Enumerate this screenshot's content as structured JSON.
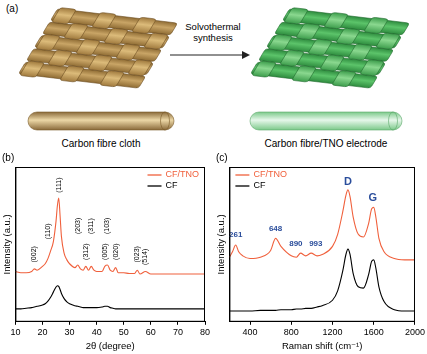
{
  "diagram": {
    "label": "(a)",
    "arrow_label": "Solvothermal synthesis",
    "left_label": "Carbon fibre cloth",
    "right_label": "Carbon fibre/TNO electrode"
  },
  "chart_data": [
    {
      "type": "line",
      "title": "(b)",
      "x_label": "2θ (degree)",
      "y_label": "Intensity (a.u.)",
      "x": [
        10,
        12,
        14,
        16,
        17,
        18,
        20,
        21,
        22,
        23,
        24,
        25,
        25.5,
        26,
        26.5,
        27,
        28,
        29,
        30,
        32,
        33,
        34,
        35,
        36,
        37,
        38,
        39,
        40,
        42,
        43,
        44,
        45,
        46,
        47,
        48,
        50,
        52,
        54,
        55,
        56,
        58,
        60,
        62,
        65,
        70,
        75,
        80
      ],
      "series": [
        {
          "name": "CF/TNO",
          "color": "#f0603c",
          "values": [
            3.9,
            3.8,
            3.8,
            3.9,
            4.1,
            4.0,
            4.3,
            4.5,
            4.9,
            5.5,
            6.2,
            7.8,
            9.0,
            9.6,
            8.2,
            6.6,
            5.3,
            4.8,
            4.5,
            4.2,
            4.4,
            4.1,
            4.0,
            4.3,
            4.0,
            4.3,
            4.0,
            3.9,
            3.9,
            4.3,
            4.4,
            4.0,
            3.9,
            4.2,
            3.8,
            3.8,
            3.75,
            3.75,
            4.0,
            3.7,
            3.9,
            3.7,
            3.7,
            3.7,
            3.7,
            3.7,
            3.7
          ]
        },
        {
          "name": "CF",
          "color": "#000000",
          "values": [
            1.0,
            1.0,
            1.05,
            1.1,
            1.15,
            1.2,
            1.3,
            1.4,
            1.6,
            1.9,
            2.3,
            2.7,
            2.8,
            2.75,
            2.5,
            2.2,
            1.8,
            1.55,
            1.4,
            1.25,
            1.2,
            1.15,
            1.1,
            1.1,
            1.1,
            1.1,
            1.1,
            1.1,
            1.15,
            1.2,
            1.2,
            1.1,
            1.05,
            1.0,
            1.0,
            1.0,
            1.0,
            1.0,
            1.0,
            1.0,
            1.0,
            1.0,
            1.0,
            1.0,
            1.0,
            1.0,
            1.0
          ]
        }
      ],
      "xlim": [
        10,
        80
      ],
      "xticks": [
        10,
        20,
        30,
        40,
        50,
        60,
        70,
        80
      ],
      "ylim": [
        0,
        12
      ],
      "tick_labels": "x",
      "grid": false,
      "legend": "upper right",
      "annotations": [
        {
          "text": "(002)",
          "x": 17,
          "y": 4.6
        },
        {
          "text": "(110)",
          "x": 22,
          "y": 6.4
        },
        {
          "text": "(111)",
          "x": 26,
          "y": 10.0
        },
        {
          "text": "(203)",
          "x": 33,
          "y": 6.8
        },
        {
          "text": "(312)",
          "x": 36,
          "y": 4.8
        },
        {
          "text": "(311)",
          "x": 38,
          "y": 6.8
        },
        {
          "text": "(005)",
          "x": 43,
          "y": 4.8
        },
        {
          "text": "(103)",
          "x": 44,
          "y": 6.8
        },
        {
          "text": "(020)",
          "x": 47,
          "y": 4.8
        },
        {
          "text": "(023)",
          "x": 55,
          "y": 4.6
        },
        {
          "text": "(514)",
          "x": 58,
          "y": 4.4
        }
      ]
    },
    {
      "type": "line",
      "title": "(c)",
      "x_label": "Raman shift (cm⁻¹)",
      "y_label": "Intensity (a.u.)",
      "x": [
        200,
        230,
        261,
        290,
        330,
        400,
        500,
        600,
        648,
        700,
        800,
        850,
        890,
        940,
        993,
        1050,
        1100,
        1200,
        1250,
        1300,
        1330,
        1350,
        1370,
        1400,
        1450,
        1500,
        1550,
        1580,
        1600,
        1620,
        1650,
        1700,
        1800,
        1900,
        2000
      ],
      "series": [
        {
          "name": "CF/TNO",
          "color": "#f0603c",
          "values": [
            4.8,
            5.2,
            5.7,
            5.2,
            4.9,
            4.7,
            4.8,
            5.3,
            6.2,
            5.6,
            4.9,
            4.8,
            5.1,
            4.9,
            5.1,
            4.9,
            5.0,
            5.6,
            6.5,
            8.2,
            9.4,
            9.8,
            9.3,
            7.8,
            6.5,
            6.3,
            7.3,
            8.4,
            8.5,
            7.8,
            6.2,
            5.2,
            4.7,
            4.6,
            4.6
          ]
        },
        {
          "name": "CF",
          "color": "#000000",
          "values": [
            0.8,
            0.8,
            0.8,
            0.8,
            0.8,
            0.8,
            0.85,
            0.85,
            0.85,
            0.9,
            0.9,
            0.95,
            0.95,
            1.0,
            1.0,
            1.1,
            1.2,
            1.6,
            2.3,
            3.8,
            5.0,
            5.4,
            5.0,
            3.6,
            2.6,
            2.5,
            3.5,
            4.5,
            4.6,
            4.0,
            2.6,
            1.5,
            0.9,
            0.8,
            0.8
          ]
        }
      ],
      "xlim": [
        200,
        2000
      ],
      "xticks": [
        400,
        800,
        1200,
        1600,
        2000
      ],
      "ylim": [
        0,
        11.5
      ],
      "tick_labels": "x",
      "grid": false,
      "legend": "upper left",
      "annotations": [
        {
          "text": "261",
          "x": 261,
          "y": 6.2
        },
        {
          "text": "648",
          "x": 648,
          "y": 6.6
        },
        {
          "text": "890",
          "x": 890,
          "y": 5.5
        },
        {
          "text": "993",
          "x": 993,
          "y": 5.5
        },
        {
          "text": "D",
          "x": 1350,
          "y": 10.0
        },
        {
          "text": "G",
          "x": 1590,
          "y": 8.8
        }
      ]
    }
  ]
}
